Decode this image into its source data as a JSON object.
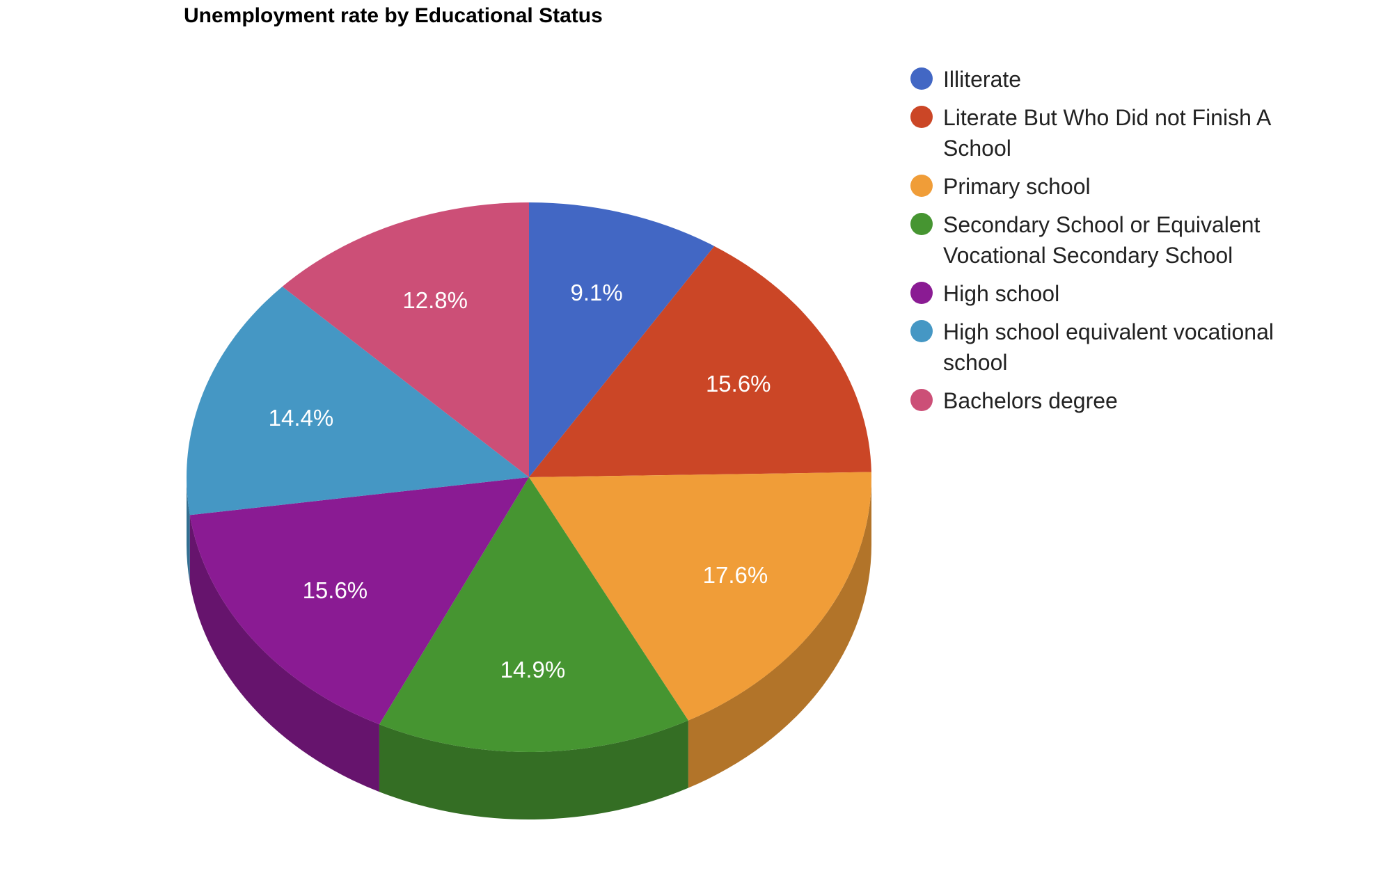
{
  "chart_data": {
    "type": "pie",
    "title": "Unemployment rate by Educational Status",
    "legend_position": "right",
    "style": "3d",
    "slices": [
      {
        "label": "Illiterate",
        "value": 9.1,
        "value_label": "9.1%",
        "color": "#4267c4"
      },
      {
        "label": "Literate But Who Did not Finish A School",
        "value": 15.6,
        "value_label": "15.6%",
        "color": "#cb4626"
      },
      {
        "label": "Primary school",
        "value": 17.6,
        "value_label": "17.6%",
        "color": "#f09d38"
      },
      {
        "label": "Secondary School or Equivalent Vocational Secondary School",
        "value": 14.9,
        "value_label": "14.9%",
        "color": "#469531"
      },
      {
        "label": "High school",
        "value": 15.6,
        "value_label": "15.6%",
        "color": "#8a1b93"
      },
      {
        "label": "High school equivalent vocational school",
        "value": 14.4,
        "value_label": "14.4%",
        "color": "#4597c4"
      },
      {
        "label": "Bachelors degree",
        "value": 12.8,
        "value_label": "12.8%",
        "color": "#cc4f77"
      }
    ]
  }
}
